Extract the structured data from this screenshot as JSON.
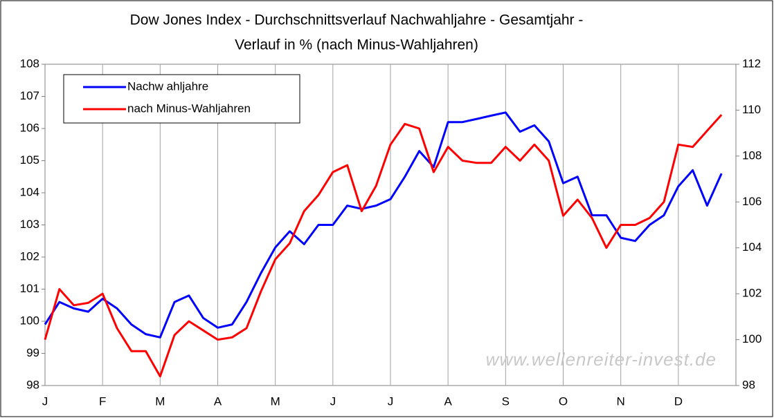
{
  "chart_data": {
    "type": "line",
    "title": [
      "Dow Jones Index - Durchschnittsverlauf Nachwahljahre - Gesamtjahr -",
      "Verlauf in % (nach Minus-Wahljahren)"
    ],
    "annotation": "www.wellenreiter-invest.de",
    "categories": [
      "J",
      null,
      null,
      null,
      "F",
      null,
      null,
      null,
      "M",
      null,
      null,
      null,
      "A",
      null,
      null,
      null,
      "M",
      null,
      null,
      null,
      "J",
      null,
      null,
      null,
      "J",
      null,
      null,
      null,
      "A",
      null,
      null,
      null,
      "S",
      null,
      null,
      null,
      "O",
      null,
      null,
      null,
      "N",
      null,
      null,
      null,
      "D",
      null,
      null,
      null
    ],
    "series": [
      {
        "name": "Nachw ahljahre",
        "color": "#0000ff",
        "axis": "y",
        "values": [
          99.9,
          100.6,
          100.4,
          100.3,
          100.7,
          100.4,
          99.9,
          99.6,
          99.5,
          100.6,
          100.8,
          100.1,
          99.8,
          99.9,
          100.6,
          101.5,
          102.3,
          102.8,
          102.4,
          103.0,
          103.0,
          103.6,
          103.5,
          103.6,
          103.8,
          104.5,
          105.3,
          104.8,
          106.2,
          106.2,
          106.3,
          106.4,
          106.5,
          105.9,
          106.1,
          105.6,
          104.3,
          104.5,
          103.3,
          103.3,
          102.6,
          102.5,
          103.0,
          103.3,
          104.2,
          104.7,
          103.6,
          104.6
        ]
      },
      {
        "name": "nach Minus-Wahljahren",
        "color": "#ff0000",
        "axis": "y2",
        "values": [
          100.0,
          102.2,
          101.5,
          101.6,
          102.0,
          100.5,
          99.5,
          99.5,
          98.4,
          100.2,
          100.8,
          100.4,
          100.0,
          100.1,
          100.5,
          102.1,
          103.5,
          104.2,
          105.6,
          106.3,
          107.3,
          107.6,
          105.6,
          106.7,
          108.5,
          109.4,
          109.2,
          107.3,
          108.4,
          107.8,
          107.7,
          107.7,
          108.4,
          107.8,
          108.5,
          107.8,
          105.4,
          106.1,
          105.3,
          104.0,
          105.0,
          105.0,
          105.3,
          106.0,
          108.5,
          108.4,
          109.1,
          109.8
        ]
      }
    ],
    "ylim": [
      98,
      108
    ],
    "yticks": [
      98,
      99,
      100,
      101,
      102,
      103,
      104,
      105,
      106,
      107,
      108
    ],
    "y2lim": [
      98,
      112
    ],
    "y2ticks": [
      98,
      100,
      102,
      104,
      106,
      108,
      110,
      112
    ],
    "grid": true,
    "legend": "top-left"
  }
}
